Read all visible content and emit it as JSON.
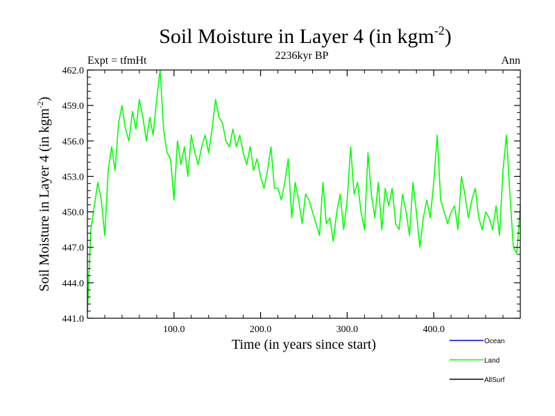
{
  "chart_data": {
    "type": "line",
    "title": "Soil Moisture in Layer 4 (in kgm",
    "title_sup": "-2",
    "title_close": ")",
    "subtitle": "2236kyr BP",
    "left_label": "Expt = tfmHt",
    "right_label": "Ann",
    "xlabel": "Time (in years since start)",
    "ylabel": "Soil Moisture in Layer 4 (in kgm",
    "ylabel_sup": "-2",
    "ylabel_close": ")",
    "xlim": [
      0,
      500
    ],
    "ylim": [
      441.0,
      462.0
    ],
    "x_ticks": [
      {
        "value": 100,
        "label": "100.0"
      },
      {
        "value": 200,
        "label": "200.0"
      },
      {
        "value": 300,
        "label": "300.0"
      },
      {
        "value": 400,
        "label": "400.0"
      }
    ],
    "y_ticks": [
      {
        "value": 441.0,
        "label": "441.0"
      },
      {
        "value": 444.0,
        "label": "444.0"
      },
      {
        "value": 447.0,
        "label": "447.0"
      },
      {
        "value": 450.0,
        "label": "450.0"
      },
      {
        "value": 453.0,
        "label": "453.0"
      },
      {
        "value": 456.0,
        "label": "456.0"
      },
      {
        "value": 459.0,
        "label": "459.0"
      },
      {
        "value": 462.0,
        "label": "462.0"
      }
    ],
    "legend": [
      {
        "name": "Ocean",
        "color": "#0000ff"
      },
      {
        "name": "Land",
        "color": "#00ff00"
      },
      {
        "name": "AllSurf",
        "color": "#000000"
      }
    ],
    "series": [
      {
        "name": "Land",
        "color": "#00ff00",
        "x": [
          0,
          4,
          8,
          12,
          16,
          20,
          24,
          28,
          32,
          36,
          40,
          44,
          48,
          52,
          56,
          60,
          64,
          68,
          72,
          76,
          80,
          84,
          88,
          92,
          96,
          100,
          104,
          108,
          112,
          116,
          120,
          124,
          128,
          132,
          136,
          140,
          144,
          148,
          152,
          156,
          160,
          164,
          168,
          172,
          176,
          180,
          184,
          188,
          192,
          196,
          200,
          204,
          208,
          212,
          216,
          220,
          224,
          228,
          232,
          236,
          240,
          244,
          248,
          252,
          256,
          260,
          264,
          268,
          272,
          276,
          280,
          284,
          288,
          292,
          296,
          300,
          304,
          308,
          312,
          316,
          320,
          324,
          328,
          332,
          336,
          340,
          344,
          348,
          352,
          356,
          360,
          364,
          368,
          372,
          376,
          380,
          384,
          388,
          392,
          396,
          400,
          404,
          408,
          412,
          416,
          420,
          424,
          428,
          432,
          436,
          440,
          444,
          448,
          452,
          456,
          460,
          464,
          468,
          472,
          476,
          480,
          484,
          488,
          492,
          496,
          500
        ],
        "values": [
          441.5,
          448.5,
          450.5,
          452.5,
          451.0,
          448.0,
          453.5,
          455.5,
          453.5,
          457.5,
          459.0,
          457.0,
          456.0,
          458.5,
          457.0,
          459.5,
          458.0,
          456.0,
          458.0,
          456.5,
          459.5,
          462.0,
          457.0,
          455.0,
          454.5,
          451.0,
          456.0,
          454.0,
          455.5,
          453.0,
          456.5,
          455.0,
          454.0,
          455.5,
          456.5,
          455.0,
          457.0,
          459.5,
          458.0,
          457.5,
          456.0,
          455.5,
          457.0,
          455.5,
          456.5,
          455.0,
          454.0,
          455.5,
          453.5,
          454.5,
          453.0,
          452.0,
          453.5,
          455.5,
          452.0,
          452.0,
          451.0,
          452.5,
          454.5,
          449.5,
          452.5,
          451.0,
          449.0,
          451.5,
          451.0,
          450.0,
          449.0,
          448.0,
          452.5,
          449.0,
          449.5,
          447.5,
          450.0,
          451.5,
          448.5,
          451.0,
          455.5,
          451.5,
          452.5,
          450.0,
          448.5,
          455.0,
          451.5,
          449.5,
          452.5,
          448.5,
          452.0,
          450.5,
          452.0,
          449.0,
          448.5,
          451.5,
          450.0,
          448.0,
          452.5,
          450.0,
          447.0,
          449.5,
          451.0,
          449.5,
          452.5,
          456.5,
          451.0,
          450.0,
          449.0,
          450.0,
          450.5,
          448.5,
          453.0,
          451.5,
          449.5,
          451.0,
          452.0,
          449.5,
          448.5,
          450.0,
          449.5,
          448.5,
          450.5,
          448.0,
          453.5,
          456.5,
          451.5,
          447.0,
          446.5,
          450.5
        ]
      }
    ]
  }
}
